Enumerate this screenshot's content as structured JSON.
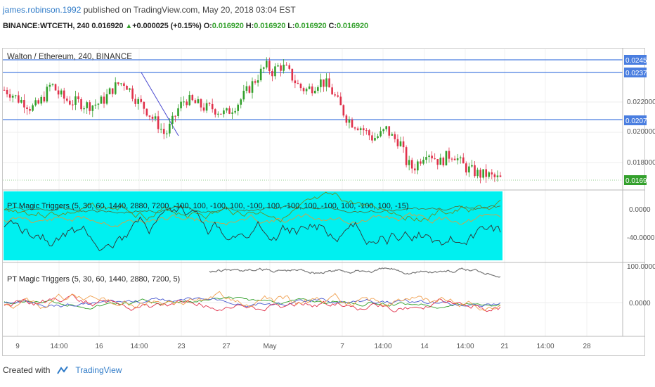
{
  "header": {
    "username": "james.robinson.1992",
    "published": "published on TradingView.com, May 20, 2018 03:04 EST",
    "symbol": "BINANCE:WTCETH, 240",
    "last": "0.016920",
    "arrow": "▲",
    "change": "+0.000025 (+0.15%)",
    "o_label": "O:",
    "o_val": "0.016920",
    "h_label": "H:",
    "h_val": "0.016920",
    "l_label": "L:",
    "l_val": "0.016920",
    "c_label": "C:",
    "c_val": "0.016920"
  },
  "colors": {
    "up": "#33a02c",
    "down": "#e0314b",
    "hline": "#4a7ee0",
    "cyan": "#00f0f0",
    "accent": "#2f7bc8"
  },
  "price_pane": {
    "title": "Walton / Ethereum, 240, BINANCE",
    "horizontal_levels": [
      0.024532,
      0.023749,
      0.020756
    ],
    "axis_labels": [
      "0.022000",
      "0.020000",
      "0.018000"
    ],
    "marked_labels": [
      "0.024532",
      "0.023749",
      "0.020756",
      "0.016920"
    ],
    "trendline": {
      "from": [
        "13",
        0.0236
      ],
      "to": [
        "22",
        0.0196
      ]
    }
  },
  "indicator1": {
    "title": "PT Magic Triggers (5, 30, 60, 1440, 2880, 7200, -100, 100, -100, 100, -100, 100, -100, 100, -100, 100, -100, 100, -15)",
    "axis_labels": [
      "0.0000",
      "-40.0000"
    ]
  },
  "indicator2": {
    "title": "PT Magic Triggers (5, 30, 60, 1440, 2880, 7200, 5)",
    "axis_labels": [
      "100.0000",
      "0.0000"
    ]
  },
  "time_axis": [
    "9",
    "14:00",
    "16",
    "14:00",
    "23",
    "27",
    "May",
    "7",
    "14:00",
    "14",
    "14:00",
    "21",
    "14:00",
    "28"
  ],
  "chart_data": {
    "type": "candlestick",
    "title": "Walton / Ethereum, 240, BINANCE",
    "x_ticks": [
      "9",
      "14:00",
      "16",
      "14:00",
      "23",
      "27",
      "May",
      "7",
      "14:00",
      "14",
      "14:00",
      "21",
      "14:00",
      "28"
    ],
    "y_ticks": [
      "0.018000",
      "0.020000",
      "0.022000"
    ],
    "close_path": [
      0.0228,
      0.0226,
      0.0222,
      0.022,
      0.0216,
      0.0218,
      0.0224,
      0.0232,
      0.0226,
      0.0222,
      0.022,
      0.022,
      0.0218,
      0.0218,
      0.0219,
      0.0222,
      0.0228,
      0.0232,
      0.0233,
      0.0226,
      0.022,
      0.0216,
      0.021,
      0.0205,
      0.0198,
      0.0206,
      0.0216,
      0.0222,
      0.022,
      0.0218,
      0.0216,
      0.0216,
      0.0214,
      0.0212,
      0.0216,
      0.022,
      0.0226,
      0.0232,
      0.0238,
      0.0244,
      0.024,
      0.0244,
      0.0242,
      0.0236,
      0.023,
      0.0228,
      0.023,
      0.0234,
      0.0232,
      0.0226,
      0.0218,
      0.021,
      0.0206,
      0.0204,
      0.02,
      0.0196,
      0.0198,
      0.0202,
      0.0196,
      0.0194,
      0.018,
      0.0176,
      0.0182,
      0.0188,
      0.0184,
      0.018,
      0.0184,
      0.0186,
      0.018,
      0.0176,
      0.0174,
      0.0172,
      0.0172,
      0.017,
      0.0169
    ],
    "last_close": 0.01692
  }
}
